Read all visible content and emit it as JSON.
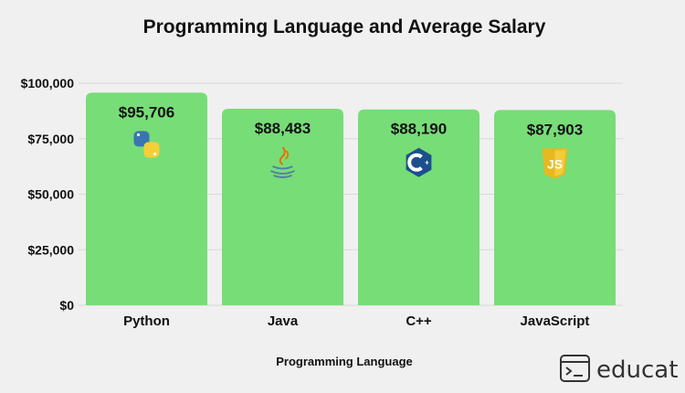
{
  "chart_data": {
    "type": "bar",
    "title": "Programming Language and Average Salary",
    "xlabel": "Programming Language",
    "ylabel": "",
    "categories": [
      "Python",
      "Java",
      "C++",
      "JavaScript"
    ],
    "values": [
      95706,
      88483,
      88190,
      87903
    ],
    "value_labels": [
      "$95,706",
      "$88,483",
      "$88,190",
      "$87,903"
    ],
    "ylim": [
      0,
      100000
    ],
    "yticks": [
      0,
      25000,
      50000,
      75000,
      100000
    ],
    "ytick_labels": [
      "$0",
      "$25,000",
      "$50,000",
      "$75,000",
      "$100,000"
    ],
    "grid": true,
    "bar_color": "#77dd77"
  },
  "icons": [
    "python-icon",
    "java-icon",
    "cpp-icon",
    "javascript-icon"
  ],
  "brand": {
    "name": "educat"
  },
  "colors": {
    "background": "#f0f0f0",
    "grid": "#d8d8d8",
    "text": "#111111"
  }
}
